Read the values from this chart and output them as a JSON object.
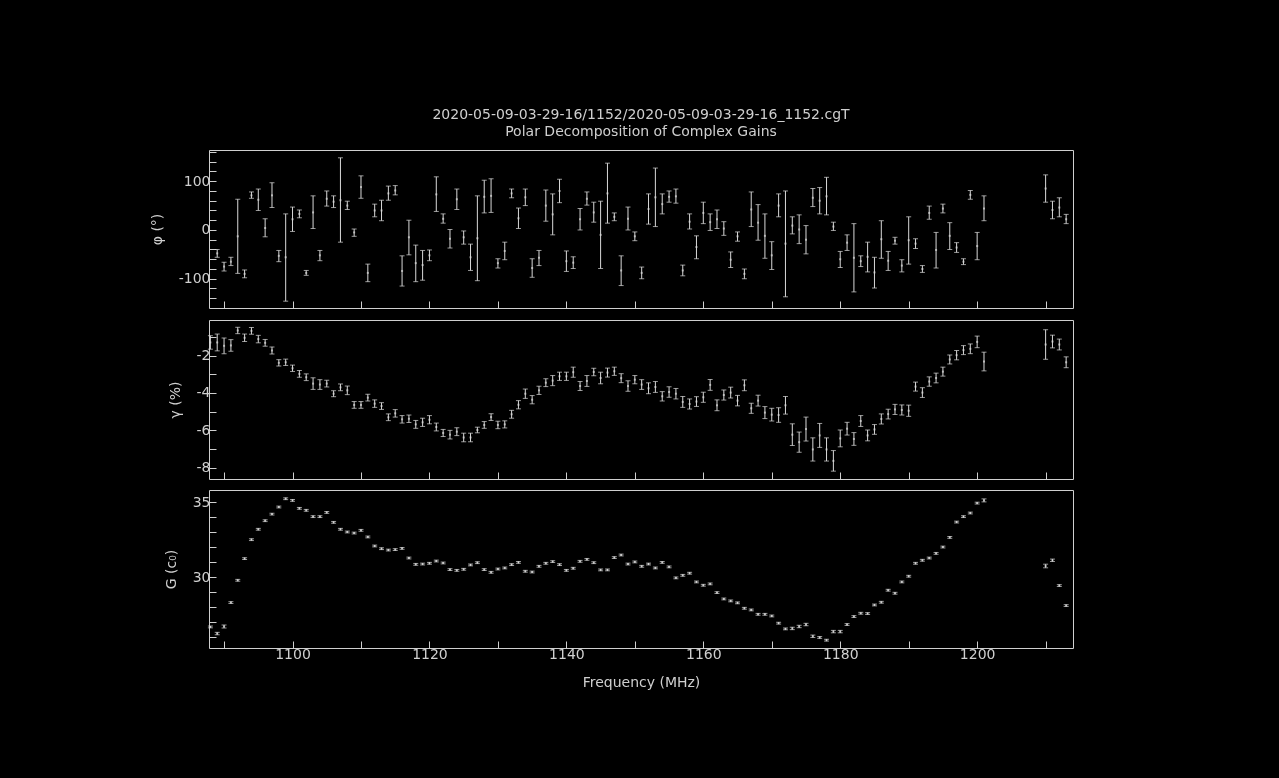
{
  "chart_data": [
    {
      "type": "scatter",
      "title": "2020-05-09-03-29-16/1152/2020-05-09-03-29-16_1152.cgT",
      "subtitle": "Polar Decomposition of Complex Gains",
      "ylabel": "φ (°)",
      "marker": "square",
      "color": "#d9d9d9",
      "tick_labels": "y",
      "xlim": [
        1087.8,
        1214
      ],
      "xticks": [
        {
          "value": 1090,
          "label": null
        },
        1100,
        {
          "value": 1110,
          "label": null
        },
        1120,
        {
          "value": 1130,
          "label": null
        },
        1140,
        {
          "value": 1150,
          "label": null
        },
        1160,
        {
          "value": 1170,
          "label": null
        },
        1180,
        {
          "value": 1190,
          "label": null
        },
        1200,
        {
          "value": 1210,
          "label": null
        }
      ],
      "ylim": [
        -160,
        164
      ],
      "yticks": [
        {
          "value": -140,
          "label": null
        },
        {
          "value": -120,
          "label": null
        },
        -100,
        {
          "value": -80,
          "label": null
        },
        {
          "value": -60,
          "label": null
        },
        {
          "value": -40,
          "label": null
        },
        {
          "value": -20,
          "label": null
        },
        0,
        {
          "value": 20,
          "label": null
        },
        {
          "value": 40,
          "label": null
        },
        {
          "value": 60,
          "label": null
        },
        {
          "value": 80,
          "label": null
        },
        100,
        {
          "value": 120,
          "label": null
        },
        {
          "value": 140,
          "label": null
        },
        {
          "value": 160,
          "label": null
        }
      ],
      "x": [
        1089,
        1090,
        1091,
        1092,
        1093,
        1094,
        1095,
        1096,
        1097,
        1098,
        1099,
        1100,
        1101,
        1102,
        1103,
        1104,
        1105,
        1106,
        1107,
        1108,
        1109,
        1110,
        1111,
        1112,
        1113,
        1114,
        1115,
        1116,
        1117,
        1118,
        1119,
        1120,
        1121,
        1122,
        1123,
        1124,
        1125,
        1126,
        1127,
        1128,
        1129,
        1130,
        1131,
        1132,
        1133,
        1134,
        1135,
        1136,
        1137,
        1138,
        1139,
        1140,
        1141,
        1142,
        1143,
        1144,
        1145,
        1146,
        1147,
        1148,
        1149,
        1150,
        1151,
        1152,
        1153,
        1154,
        1155,
        1156,
        1157,
        1158,
        1159,
        1160,
        1161,
        1162,
        1163,
        1164,
        1165,
        1166,
        1167,
        1168,
        1169,
        1170,
        1171,
        1172,
        1173,
        1174,
        1175,
        1176,
        1177,
        1178,
        1179,
        1180,
        1181,
        1182,
        1183,
        1184,
        1185,
        1186,
        1187,
        1188,
        1189,
        1190,
        1191,
        1192,
        1193,
        1194,
        1195,
        1196,
        1197,
        1198,
        1199,
        1200,
        1201,
        1210,
        1211,
        1212,
        1213
      ],
      "values": [
        -48,
        -75,
        -65,
        -13,
        -90,
        71,
        62,
        4,
        71,
        -53,
        -56,
        22,
        33,
        -88,
        36,
        -52,
        64,
        58,
        61,
        50,
        -5,
        88,
        -88,
        40,
        40,
        75,
        81,
        -84,
        -15,
        -68,
        -72,
        -52,
        73,
        23,
        -18,
        63,
        -15,
        -56,
        -17,
        68,
        70,
        -68,
        -43,
        75,
        24,
        67,
        -78,
        -57,
        50,
        32,
        80,
        -64,
        -67,
        22,
        64,
        36,
        -10,
        75,
        27,
        -83,
        23,
        -13,
        -88,
        43,
        67,
        53,
        68,
        69,
        -83,
        17,
        -35,
        35,
        16,
        22,
        3,
        -61,
        -13,
        -90,
        42,
        15,
        -12,
        -52,
        50,
        -28,
        9,
        1,
        -20,
        66,
        60,
        69,
        7,
        -60,
        -26,
        -57,
        -64,
        -55,
        -87,
        -19,
        -63,
        -22,
        -73,
        -21,
        -28,
        -80,
        35,
        -41,
        44,
        -12,
        -36,
        -65,
        72,
        -33,
        44,
        85,
        41,
        46,
        22
      ],
      "errors": [
        [
          -56,
          -40
        ],
        [
          -84,
          -66
        ],
        [
          -73,
          -56
        ],
        [
          -89,
          63
        ],
        [
          -98,
          -82
        ],
        [
          65,
          78
        ],
        [
          40,
          84
        ],
        [
          -14,
          23
        ],
        [
          46,
          97
        ],
        [
          -65,
          -42
        ],
        [
          -146,
          33
        ],
        [
          -3,
          47
        ],
        [
          25,
          41
        ],
        [
          -93,
          -83
        ],
        [
          3,
          70
        ],
        [
          -63,
          -42
        ],
        [
          49,
          80
        ],
        [
          46,
          70
        ],
        [
          -25,
          148
        ],
        [
          42,
          59
        ],
        [
          -13,
          2
        ],
        [
          65,
          111
        ],
        [
          -106,
          -70
        ],
        [
          27,
          53
        ],
        [
          19,
          61
        ],
        [
          61,
          90
        ],
        [
          72,
          91
        ],
        [
          -115,
          -53
        ],
        [
          -51,
          20
        ],
        [
          -106,
          -31
        ],
        [
          -103,
          -42
        ],
        [
          -63,
          -41
        ],
        [
          38,
          109
        ],
        [
          14,
          33
        ],
        [
          -37,
          1
        ],
        [
          42,
          84
        ],
        [
          -29,
          -2
        ],
        [
          -83,
          -29
        ],
        [
          -104,
          70
        ],
        [
          35,
          102
        ],
        [
          36,
          105
        ],
        [
          -78,
          -59
        ],
        [
          -61,
          -25
        ],
        [
          66,
          84
        ],
        [
          3,
          45
        ],
        [
          50,
          84
        ],
        [
          -97,
          -59
        ],
        [
          -73,
          -42
        ],
        [
          18,
          82
        ],
        [
          -10,
          74
        ],
        [
          56,
          104
        ],
        [
          -85,
          -43
        ],
        [
          -79,
          -55
        ],
        [
          0,
          44
        ],
        [
          51,
          78
        ],
        [
          16,
          57
        ],
        [
          -79,
          59
        ],
        [
          14,
          137
        ],
        [
          19,
          35
        ],
        [
          -114,
          -53
        ],
        [
          0,
          47
        ],
        [
          -22,
          -4
        ],
        [
          -100,
          -76
        ],
        [
          12,
          74
        ],
        [
          7,
          127
        ],
        [
          33,
          74
        ],
        [
          57,
          80
        ],
        [
          55,
          84
        ],
        [
          -94,
          -72
        ],
        [
          2,
          33
        ],
        [
          -59,
          -12
        ],
        [
          13,
          57
        ],
        [
          -1,
          33
        ],
        [
          3,
          41
        ],
        [
          -11,
          17
        ],
        [
          -77,
          -45
        ],
        [
          -23,
          -4
        ],
        [
          -100,
          -80
        ],
        [
          7,
          78
        ],
        [
          -21,
          52
        ],
        [
          -58,
          33
        ],
        [
          -81,
          -24
        ],
        [
          27,
          74
        ],
        [
          -137,
          80
        ],
        [
          -8,
          27
        ],
        [
          -28,
          31
        ],
        [
          -49,
          9
        ],
        [
          48,
          85
        ],
        [
          33,
          87
        ],
        [
          31,
          108
        ],
        [
          -1,
          16
        ],
        [
          -77,
          -44
        ],
        [
          -42,
          -10
        ],
        [
          -127,
          13
        ],
        [
          -75,
          -53
        ],
        [
          -86,
          -25
        ],
        [
          -119,
          -56
        ],
        [
          -58,
          19
        ],
        [
          -83,
          -44
        ],
        [
          -29,
          -15
        ],
        [
          -86,
          -61
        ],
        [
          -70,
          27
        ],
        [
          -38,
          -18
        ],
        [
          -87,
          -73
        ],
        [
          22,
          49
        ],
        [
          -78,
          -5
        ],
        [
          35,
          53
        ],
        [
          -40,
          15
        ],
        [
          -46,
          -26
        ],
        [
          -71,
          -59
        ],
        [
          63,
          81
        ],
        [
          -61,
          -5
        ],
        [
          19,
          70
        ],
        [
          57,
          113
        ],
        [
          23,
          59
        ],
        [
          27,
          66
        ],
        [
          13,
          32
        ]
      ]
    },
    {
      "type": "scatter",
      "ylabel": "γ (%)",
      "marker": "square",
      "color": "#d9d9d9",
      "tick_labels": "y",
      "xlim": [
        1087.8,
        1214
      ],
      "xticks": [
        {
          "value": 1090,
          "label": null
        },
        1100,
        {
          "value": 1110,
          "label": null
        },
        1120,
        {
          "value": 1130,
          "label": null
        },
        1140,
        {
          "value": 1150,
          "label": null
        },
        1160,
        {
          "value": 1170,
          "label": null
        },
        1180,
        {
          "value": 1190,
          "label": null
        },
        1200,
        {
          "value": 1210,
          "label": null
        }
      ],
      "ylim": [
        -8.6,
        -0.1
      ],
      "yticks": [
        -8,
        {
          "value": -7,
          "label": null
        },
        -6,
        {
          "value": -5,
          "label": null
        },
        -4,
        {
          "value": -3,
          "label": null
        },
        -2,
        {
          "value": -1,
          "label": null
        }
      ],
      "x": [
        1088,
        1089,
        1090,
        1091,
        1092,
        1093,
        1094,
        1095,
        1096,
        1097,
        1098,
        1099,
        1100,
        1101,
        1102,
        1103,
        1104,
        1105,
        1106,
        1107,
        1108,
        1109,
        1110,
        1111,
        1112,
        1113,
        1114,
        1115,
        1116,
        1117,
        1118,
        1119,
        1120,
        1121,
        1122,
        1123,
        1124,
        1125,
        1126,
        1127,
        1128,
        1129,
        1130,
        1131,
        1132,
        1133,
        1134,
        1135,
        1136,
        1137,
        1138,
        1139,
        1140,
        1141,
        1142,
        1143,
        1144,
        1145,
        1146,
        1147,
        1148,
        1149,
        1150,
        1151,
        1152,
        1153,
        1154,
        1155,
        1156,
        1157,
        1158,
        1159,
        1160,
        1161,
        1162,
        1163,
        1164,
        1165,
        1166,
        1167,
        1168,
        1169,
        1170,
        1171,
        1172,
        1173,
        1174,
        1175,
        1176,
        1177,
        1178,
        1179,
        1180,
        1181,
        1182,
        1183,
        1184,
        1185,
        1186,
        1187,
        1188,
        1189,
        1190,
        1191,
        1192,
        1193,
        1194,
        1195,
        1196,
        1197,
        1198,
        1199,
        1200,
        1201,
        1210,
        1211,
        1212,
        1213
      ],
      "values": [
        -1.3,
        -1.3,
        -1.48,
        -1.46,
        -0.66,
        -1.05,
        -0.68,
        -1.12,
        -1.32,
        -1.73,
        -2.39,
        -2.36,
        -2.68,
        -2.98,
        -3.16,
        -3.5,
        -3.55,
        -3.5,
        -4.04,
        -3.7,
        -3.86,
        -4.64,
        -4.64,
        -4.25,
        -4.57,
        -4.7,
        -5.3,
        -5.09,
        -5.41,
        -5.38,
        -5.68,
        -5.57,
        -5.43,
        -5.82,
        -6.14,
        -6.23,
        -6.07,
        -6.38,
        -6.38,
        -5.98,
        -5.71,
        -5.29,
        -5.71,
        -5.68,
        -5.14,
        -4.63,
        -4.04,
        -4.36,
        -3.86,
        -3.45,
        -3.34,
        -3.11,
        -3.11,
        -2.89,
        -3.63,
        -3.36,
        -2.88,
        -3.2,
        -2.91,
        -2.84,
        -3.21,
        -3.63,
        -3.29,
        -3.55,
        -3.75,
        -3.68,
        -4.18,
        -3.95,
        -4.04,
        -4.48,
        -4.59,
        -4.46,
        -4.23,
        -3.57,
        -4.66,
        -4.11,
        -3.98,
        -4.41,
        -3.59,
        -4.82,
        -4.41,
        -5.05,
        -5.16,
        -5.18,
        -4.66,
        -6.23,
        -6.63,
        -5.93,
        -7.02,
        -6.27,
        -7.02,
        -7.63,
        -6.43,
        -5.91,
        -6.46,
        -5.5,
        -6.27,
        -5.95,
        -5.39,
        -5.13,
        -4.88,
        -4.91,
        -4.95,
        -3.66,
        -3.98,
        -3.39,
        -3.2,
        -2.86,
        -2.21,
        -1.98,
        -1.71,
        -1.64,
        -1.27,
        -2.32,
        -1.41,
        -1.25,
        -1.41,
        -2.36
      ],
      "errors": [
        0.36,
        0.45,
        0.42,
        0.31,
        0.17,
        0.2,
        0.18,
        0.2,
        0.18,
        0.19,
        0.17,
        0.17,
        0.17,
        0.18,
        0.18,
        0.31,
        0.26,
        0.18,
        0.16,
        0.18,
        0.23,
        0.18,
        0.18,
        0.18,
        0.2,
        0.18,
        0.18,
        0.2,
        0.2,
        0.2,
        0.21,
        0.22,
        0.22,
        0.21,
        0.19,
        0.23,
        0.21,
        0.23,
        0.23,
        0.15,
        0.18,
        0.18,
        0.2,
        0.19,
        0.21,
        0.22,
        0.25,
        0.22,
        0.22,
        0.21,
        0.27,
        0.22,
        0.22,
        0.27,
        0.24,
        0.29,
        0.2,
        0.31,
        0.24,
        0.22,
        0.24,
        0.28,
        0.22,
        0.26,
        0.29,
        0.29,
        0.25,
        0.28,
        0.28,
        0.29,
        0.27,
        0.26,
        0.27,
        0.29,
        0.29,
        0.27,
        0.29,
        0.28,
        0.29,
        0.27,
        0.29,
        0.32,
        0.34,
        0.39,
        0.47,
        0.58,
        0.54,
        0.64,
        0.62,
        0.64,
        0.62,
        0.55,
        0.45,
        0.34,
        0.34,
        0.29,
        0.29,
        0.26,
        0.27,
        0.26,
        0.27,
        0.27,
        0.3,
        0.24,
        0.26,
        0.25,
        0.26,
        0.24,
        0.24,
        0.25,
        0.24,
        0.26,
        0.31,
        0.5,
        0.79,
        0.34,
        0.29,
        0.29
      ]
    },
    {
      "type": "scatter",
      "xlabel": "Frequency (MHz)",
      "ylabel": "G (c₀)",
      "marker": "square",
      "color": "#d9d9d9",
      "xlim": [
        1087.8,
        1214
      ],
      "xticks": [
        {
          "value": 1090,
          "label": null
        },
        1100,
        {
          "value": 1110,
          "label": null
        },
        1120,
        {
          "value": 1130,
          "label": null
        },
        1140,
        {
          "value": 1150,
          "label": null
        },
        1160,
        {
          "value": 1170,
          "label": null
        },
        1180,
        {
          "value": 1190,
          "label": null
        },
        1200,
        {
          "value": 1210,
          "label": null
        }
      ],
      "ylim": [
        25.3,
        35.8
      ],
      "yticks": [
        {
          "value": 26,
          "label": null
        },
        {
          "value": 27,
          "label": null
        },
        {
          "value": 28,
          "label": null
        },
        {
          "value": 29,
          "label": null
        },
        30,
        {
          "value": 31,
          "label": null
        },
        {
          "value": 32,
          "label": null
        },
        {
          "value": 33,
          "label": null
        },
        {
          "value": 34,
          "label": null
        },
        35
      ],
      "x": [
        1088,
        1089,
        1090,
        1091,
        1092,
        1093,
        1094,
        1095,
        1096,
        1097,
        1098,
        1099,
        1100,
        1101,
        1102,
        1103,
        1104,
        1105,
        1106,
        1107,
        1108,
        1109,
        1110,
        1111,
        1112,
        1113,
        1114,
        1115,
        1116,
        1117,
        1118,
        1119,
        1120,
        1121,
        1122,
        1123,
        1124,
        1125,
        1126,
        1127,
        1128,
        1129,
        1130,
        1131,
        1132,
        1133,
        1134,
        1135,
        1136,
        1137,
        1138,
        1139,
        1140,
        1141,
        1142,
        1143,
        1144,
        1145,
        1146,
        1147,
        1148,
        1149,
        1150,
        1151,
        1152,
        1153,
        1154,
        1155,
        1156,
        1157,
        1158,
        1159,
        1160,
        1161,
        1162,
        1163,
        1164,
        1165,
        1166,
        1167,
        1168,
        1169,
        1170,
        1171,
        1172,
        1173,
        1174,
        1175,
        1176,
        1177,
        1178,
        1179,
        1180,
        1181,
        1182,
        1183,
        1184,
        1185,
        1186,
        1187,
        1188,
        1189,
        1190,
        1191,
        1192,
        1193,
        1194,
        1195,
        1196,
        1197,
        1198,
        1199,
        1200,
        1201,
        1210,
        1211,
        1212,
        1213
      ],
      "values": [
        26.7,
        26.26,
        26.73,
        28.32,
        29.8,
        31.24,
        32.5,
        33.19,
        33.76,
        34.2,
        34.67,
        35.22,
        35.11,
        34.58,
        34.45,
        34.03,
        34.03,
        34.31,
        33.65,
        33.19,
        33.01,
        32.94,
        33.12,
        32.68,
        32.08,
        31.9,
        31.81,
        31.84,
        31.92,
        31.28,
        30.86,
        30.88,
        30.93,
        31.08,
        30.95,
        30.51,
        30.46,
        30.53,
        30.82,
        30.97,
        30.51,
        30.33,
        30.55,
        30.62,
        30.84,
        30.99,
        30.4,
        30.35,
        30.73,
        30.93,
        31.04,
        30.84,
        30.46,
        30.6,
        31.06,
        31.19,
        30.97,
        30.49,
        30.49,
        31.31,
        31.48,
        30.88,
        31.02,
        30.73,
        30.88,
        30.62,
        30.99,
        30.69,
        29.96,
        30.13,
        30.27,
        29.69,
        29.47,
        29.56,
        28.98,
        28.56,
        28.43,
        28.3,
        27.94,
        27.83,
        27.54,
        27.54,
        27.43,
        26.95,
        26.57,
        26.6,
        26.73,
        26.86,
        26.08,
        26.0,
        25.82,
        26.39,
        26.39,
        26.86,
        27.39,
        27.61,
        27.59,
        28.16,
        28.34,
        29.14,
        28.94,
        29.69,
        30.07,
        30.93,
        31.13,
        31.28,
        31.59,
        32.01,
        32.65,
        33.67,
        34.03,
        34.27,
        34.93,
        35.11,
        30.75,
        31.13,
        29.45,
        28.12
      ],
      "errors": [
        0.06,
        0.08,
        0.1,
        0.06,
        0.06,
        0.06,
        0.06,
        0.06,
        0.06,
        0.06,
        0.06,
        0.06,
        0.06,
        0.06,
        0.06,
        0.06,
        0.06,
        0.06,
        0.06,
        0.06,
        0.06,
        0.06,
        0.06,
        0.06,
        0.06,
        0.06,
        0.06,
        0.06,
        0.06,
        0.06,
        0.06,
        0.06,
        0.06,
        0.06,
        0.06,
        0.06,
        0.06,
        0.06,
        0.06,
        0.06,
        0.06,
        0.06,
        0.06,
        0.06,
        0.06,
        0.06,
        0.06,
        0.06,
        0.06,
        0.06,
        0.06,
        0.06,
        0.06,
        0.06,
        0.06,
        0.06,
        0.06,
        0.06,
        0.06,
        0.06,
        0.06,
        0.06,
        0.06,
        0.06,
        0.06,
        0.06,
        0.06,
        0.06,
        0.06,
        0.06,
        0.06,
        0.06,
        0.06,
        0.06,
        0.06,
        0.06,
        0.06,
        0.06,
        0.06,
        0.06,
        0.06,
        0.06,
        0.06,
        0.06,
        0.06,
        0.08,
        0.08,
        0.08,
        0.08,
        0.06,
        0.06,
        0.08,
        0.08,
        0.06,
        0.06,
        0.06,
        0.06,
        0.06,
        0.06,
        0.06,
        0.06,
        0.06,
        0.06,
        0.06,
        0.06,
        0.06,
        0.06,
        0.06,
        0.06,
        0.06,
        0.06,
        0.06,
        0.06,
        0.1,
        0.12,
        0.08,
        0.06,
        0.06
      ]
    }
  ]
}
